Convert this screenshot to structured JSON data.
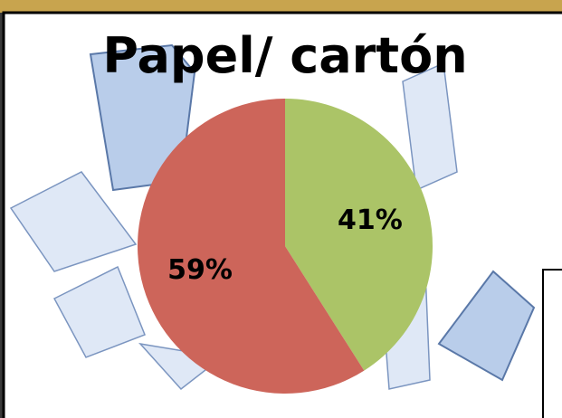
{
  "chart_data": {
    "type": "pie",
    "title": "Papel/ cartón",
    "values": [
      41,
      59
    ],
    "value_labels": [
      "41%",
      "59%"
    ],
    "colors": [
      "#abc467",
      "#cd655a"
    ]
  }
}
